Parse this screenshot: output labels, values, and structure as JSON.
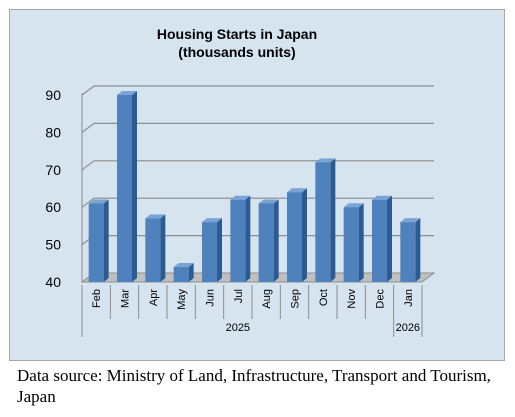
{
  "chart_data": {
    "type": "bar",
    "title": "Housing Starts in Japan",
    "subtitle": "(thousands units)",
    "categories": [
      "Feb",
      "Mar",
      "Apr",
      "May",
      "Jun",
      "Jul",
      "Aug",
      "Sep",
      "Oct",
      "Nov",
      "Dec",
      "Jan"
    ],
    "year_groups": [
      {
        "label": "2025",
        "from": 0,
        "to": 10
      },
      {
        "label": "2026",
        "from": 11,
        "to": 11
      }
    ],
    "values": [
      61,
      90,
      57,
      44,
      56,
      62,
      61,
      64,
      72,
      60,
      62,
      56
    ],
    "ylim": [
      40,
      90
    ],
    "yticks": [
      "90",
      "80",
      "70",
      "60",
      "50",
      "40"
    ],
    "grid": true,
    "xlabel": "",
    "ylabel": "",
    "colors": {
      "plot_background": "#d6e4f0",
      "bar_front": "#4f81bd",
      "bar_side": "#2b5b93",
      "bar_top": "#7aa3d6",
      "gridline": "#8c8c8c",
      "floor": "#bfbfbf"
    }
  },
  "source": {
    "caption": "Data source: Ministry of Land, Infrastructure, Transport and Tourism, Japan"
  }
}
